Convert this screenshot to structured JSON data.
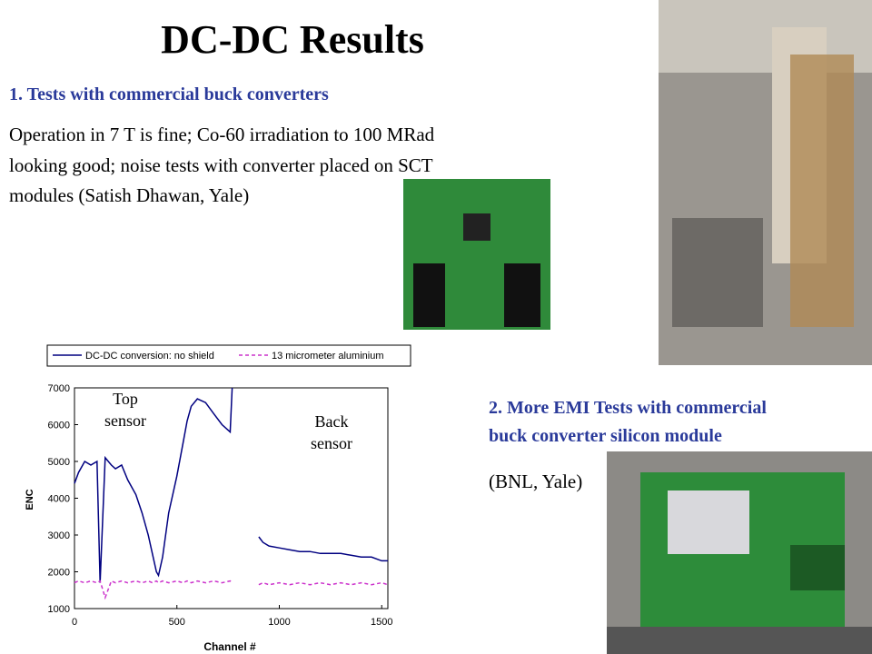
{
  "slide": {
    "title": "DC-DC Results",
    "section1": {
      "heading": "1. Tests with commercial buck converters",
      "lines": [
        "Operation in 7 T is fine; Co-60 irradiation to 100 MRad",
        "looking good;  noise tests with converter placed on SCT",
        "modules (Satish Dhawan, Yale)"
      ]
    },
    "section2": {
      "heading_lines": [
        "2. More EMI Tests with commercial",
        "buck converter silicon module"
      ],
      "note": "(BNL, Yale)"
    }
  },
  "chart_data": {
    "type": "line",
    "xlabel": "Channel #",
    "ylabel": "ENC",
    "x": [
      0,
      20,
      50,
      80,
      110,
      125,
      150,
      180,
      200,
      230,
      260,
      300,
      330,
      360,
      380,
      400,
      410,
      430,
      460,
      500,
      530,
      550,
      570,
      600,
      640,
      680,
      720,
      760,
      770,
      840,
      900,
      920,
      950,
      1000,
      1050,
      1100,
      1150,
      1200,
      1250,
      1300,
      1350,
      1400,
      1450,
      1500,
      1530
    ],
    "series": [
      {
        "name": "DC-DC conversion: no shield",
        "color": "#000080",
        "dash": false,
        "values": [
          4400,
          4700,
          5000,
          4900,
          5000,
          1700,
          5100,
          4900,
          4800,
          4900,
          4500,
          4100,
          3600,
          3000,
          2500,
          2000,
          1900,
          2400,
          3600,
          4600,
          5500,
          6100,
          6500,
          6700,
          6600,
          6300,
          6000,
          5800,
          7000,
          null,
          2950,
          2800,
          2700,
          2650,
          2600,
          2550,
          2550,
          2500,
          2500,
          2500,
          2450,
          2400,
          2400,
          2300,
          2300
        ]
      },
      {
        "name": "13 micrometer aluminium",
        "color": "#cc33cc",
        "dash": true,
        "values": [
          1700,
          1750,
          1700,
          1750,
          1700,
          1750,
          1300,
          1750,
          1700,
          1750,
          1700,
          1750,
          1700,
          1750,
          1700,
          1750,
          1700,
          1750,
          1700,
          1750,
          1700,
          1750,
          1700,
          1750,
          1700,
          1750,
          1700,
          1750,
          1700,
          null,
          1650,
          1700,
          1650,
          1700,
          1650,
          1700,
          1650,
          1700,
          1650,
          1700,
          1650,
          1700,
          1650,
          1700,
          1650
        ]
      }
    ],
    "xlim": [
      0,
      1530
    ],
    "ylim": [
      1000,
      7000
    ],
    "xticks": [
      0,
      500,
      1000,
      1500
    ],
    "yticks": [
      1000,
      2000,
      3000,
      4000,
      5000,
      6000,
      7000
    ],
    "legend": "top",
    "annotations": [
      "Top sensor",
      "Back sensor"
    ]
  }
}
